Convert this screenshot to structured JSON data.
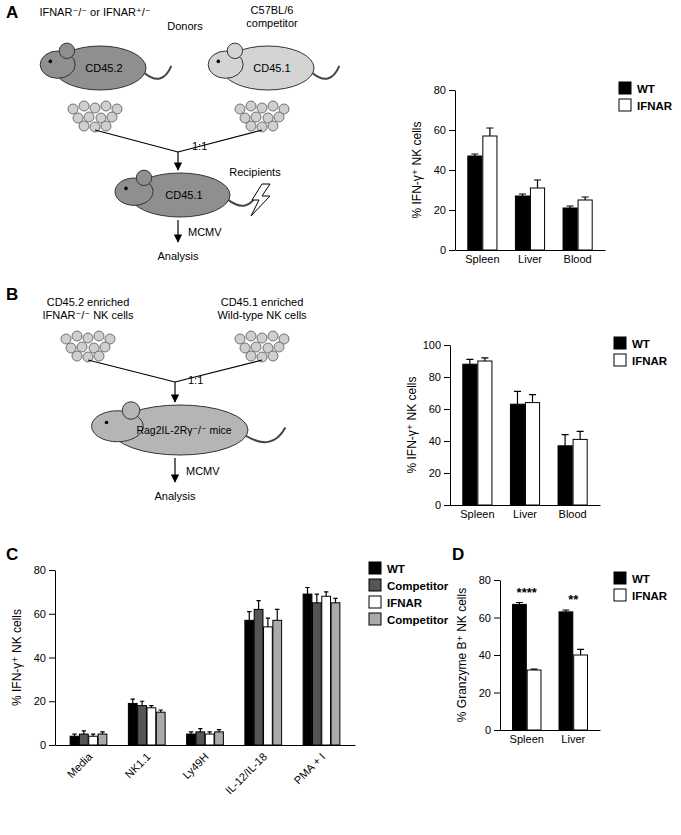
{
  "panel_labels": [
    "A",
    "B",
    "C",
    "D"
  ],
  "diagrams": [
    {
      "donor_title": "IFNAR⁻/⁻ or IFNAR⁺/⁻",
      "donor_role": "Donors",
      "competitor_title": "C57BL/6",
      "competitor_role": "competitor",
      "donor_marker": "CD45.2",
      "competitor_marker": "CD45.1",
      "ratio": "1:1",
      "recipient_role": "Recipients",
      "recipient_marker": "CD45.1",
      "infection": "MCMV",
      "readout": "Analysis"
    },
    {
      "left_cells": [
        "CD45.2 enriched",
        "IFNAR⁻/⁻ NK cells"
      ],
      "right_cells": [
        "CD45.1 enriched",
        "Wild-type NK cells"
      ],
      "ratio": "1:1",
      "recipient_title": "Rag2IL-2Rγ⁻/⁻ mice",
      "infection": "MCMV",
      "readout": "Analysis"
    }
  ],
  "chart_data": [
    {
      "type": "bar",
      "y_label": "% IFN-γ⁺ NK cells",
      "categories": [
        "Spleen",
        "Liver",
        "Blood"
      ],
      "series": [
        {
          "name": "WT",
          "color": "#000000",
          "values": [
            47,
            27,
            21
          ],
          "errors": [
            1,
            1,
            1
          ]
        },
        {
          "name": "IFNAR",
          "color": "#ffffff",
          "values": [
            57,
            31,
            25
          ],
          "errors": [
            4,
            4,
            1.5
          ]
        }
      ],
      "ylim": [
        0,
        80
      ],
      "yticks": [
        0,
        20,
        40,
        60,
        80
      ],
      "legend": "right"
    },
    {
      "type": "bar",
      "y_label": "% IFN-γ⁺ NK cells",
      "categories": [
        "Spleen",
        "Liver",
        "Blood"
      ],
      "series": [
        {
          "name": "WT",
          "color": "#000000",
          "values": [
            88,
            63,
            37
          ],
          "errors": [
            3,
            8,
            7
          ]
        },
        {
          "name": "IFNAR",
          "color": "#ffffff",
          "values": [
            90,
            64,
            41
          ],
          "errors": [
            2,
            5,
            5
          ]
        }
      ],
      "ylim": [
        0,
        100
      ],
      "yticks": [
        0,
        20,
        40,
        60,
        80,
        100
      ],
      "legend": "right"
    },
    {
      "type": "bar",
      "y_label": "% IFN-γ⁺ NK cells",
      "categories": [
        "Media",
        "NK1.1",
        "Ly49H",
        "IL-12/IL-18",
        "PMA + I"
      ],
      "series": [
        {
          "name": "WT",
          "color": "#000000",
          "values": [
            4,
            19,
            5,
            57,
            69
          ],
          "errors": [
            1,
            2,
            1,
            4,
            3
          ]
        },
        {
          "name": "Competitor",
          "color": "#555555",
          "values": [
            5,
            18,
            6,
            62,
            65
          ],
          "errors": [
            1.5,
            2,
            1.5,
            4,
            4
          ]
        },
        {
          "name": "IFNAR",
          "color": "#ffffff",
          "values": [
            4,
            17,
            5,
            54,
            68
          ],
          "errors": [
            1,
            1,
            1,
            4,
            2
          ]
        },
        {
          "name": "Competitor",
          "color": "#aaaaaa",
          "values": [
            5,
            15,
            6,
            57,
            65
          ],
          "errors": [
            1,
            1,
            1,
            5,
            2
          ]
        }
      ],
      "ylim": [
        0,
        80
      ],
      "yticks": [
        0,
        20,
        40,
        60,
        80
      ],
      "legend": "right"
    },
    {
      "type": "bar",
      "y_label": "% Granzyme B⁺ NK cells",
      "categories": [
        "Spleen",
        "Liver"
      ],
      "series": [
        {
          "name": "WT",
          "color": "#000000",
          "values": [
            67,
            63
          ],
          "errors": [
            1,
            1
          ]
        },
        {
          "name": "IFNAR",
          "color": "#ffffff",
          "values": [
            32,
            40
          ],
          "errors": [
            0.5,
            3
          ]
        }
      ],
      "ylim": [
        0,
        80
      ],
      "yticks": [
        0,
        20,
        40,
        60,
        80
      ],
      "legend": "right",
      "annotations": [
        {
          "text": "****",
          "category": "Spleen"
        },
        {
          "text": "**",
          "category": "Liver"
        }
      ]
    }
  ]
}
